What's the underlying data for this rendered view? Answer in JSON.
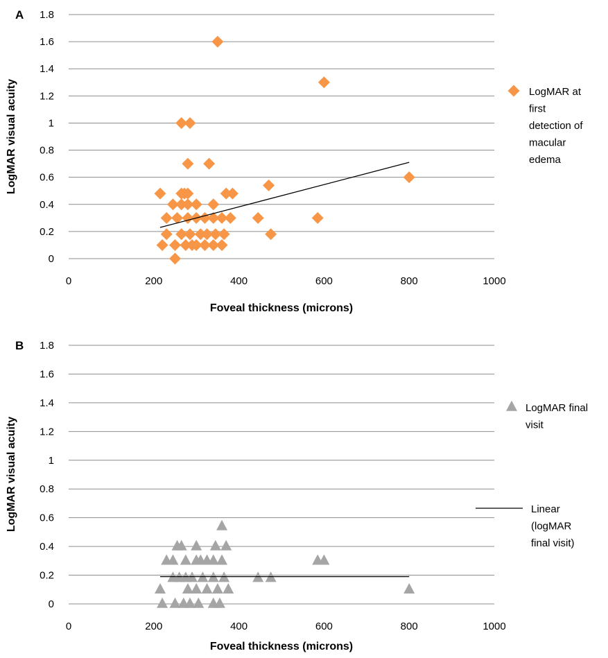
{
  "chart_data": [
    {
      "panel_label": "A",
      "type": "scatter",
      "xlabel": "Foveal thickness (microns)",
      "ylabel": "LogMAR visual acuity",
      "xlim": [
        0,
        1000
      ],
      "ylim": [
        0,
        1.8
      ],
      "x_ticks": [
        "0",
        "200",
        "400",
        "600",
        "800",
        "1000"
      ],
      "y_ticks": [
        "0",
        "0.2",
        "0.4",
        "0.6",
        "0.8",
        "1",
        "1.2",
        "1.4",
        "1.6",
        "1.8"
      ],
      "grid": "horizontal",
      "legend_position": "right",
      "marker": "diamond",
      "color": "#F79646",
      "trendline_color": "#000000",
      "series": [
        {
          "name": "LogMAR at first detection of macular edema",
          "legend_lines": [
            "LogMAR at",
            "first",
            "detection of",
            "macular",
            "edema"
          ],
          "points": [
            [
              350,
              1.6
            ],
            [
              600,
              1.3
            ],
            [
              265,
              1.0
            ],
            [
              285,
              1.0
            ],
            [
              280,
              0.7
            ],
            [
              330,
              0.7
            ],
            [
              800,
              0.6
            ],
            [
              470,
              0.54
            ],
            [
              215,
              0.48
            ],
            [
              265,
              0.48
            ],
            [
              272,
              0.48
            ],
            [
              280,
              0.48
            ],
            [
              370,
              0.48
            ],
            [
              385,
              0.48
            ],
            [
              245,
              0.4
            ],
            [
              265,
              0.4
            ],
            [
              280,
              0.4
            ],
            [
              300,
              0.4
            ],
            [
              340,
              0.4
            ],
            [
              230,
              0.3
            ],
            [
              255,
              0.3
            ],
            [
              280,
              0.3
            ],
            [
              300,
              0.3
            ],
            [
              320,
              0.3
            ],
            [
              340,
              0.3
            ],
            [
              360,
              0.3
            ],
            [
              380,
              0.3
            ],
            [
              445,
              0.3
            ],
            [
              585,
              0.3
            ],
            [
              230,
              0.18
            ],
            [
              265,
              0.18
            ],
            [
              285,
              0.18
            ],
            [
              310,
              0.18
            ],
            [
              325,
              0.18
            ],
            [
              345,
              0.18
            ],
            [
              365,
              0.18
            ],
            [
              475,
              0.18
            ],
            [
              220,
              0.1
            ],
            [
              250,
              0.1
            ],
            [
              275,
              0.1
            ],
            [
              290,
              0.1
            ],
            [
              300,
              0.1
            ],
            [
              320,
              0.1
            ],
            [
              340,
              0.1
            ],
            [
              360,
              0.1
            ],
            [
              250,
              0.0
            ]
          ]
        }
      ],
      "trendline": {
        "x": [
          215,
          800
        ],
        "y": [
          0.23,
          0.71
        ]
      }
    },
    {
      "panel_label": "B",
      "type": "scatter",
      "xlabel": "Foveal thickness (microns)",
      "ylabel": "LogMAR visual acuity",
      "xlim": [
        0,
        1000
      ],
      "ylim": [
        0,
        1.8
      ],
      "x_ticks": [
        "0",
        "200",
        "400",
        "600",
        "800",
        "1000"
      ],
      "y_ticks": [
        "0",
        "0.2",
        "0.4",
        "0.6",
        "0.8",
        "1",
        "1.2",
        "1.4",
        "1.6",
        "1.8"
      ],
      "grid": "horizontal",
      "legend_position": "right",
      "marker": "triangle",
      "color": "#A5A5A5",
      "trendline_color": "#000000",
      "series": [
        {
          "name": "LogMAR final visit",
          "legend_lines": [
            "LogMAR final",
            "visit"
          ],
          "points": [
            [
              360,
              0.54
            ],
            [
              255,
              0.4
            ],
            [
              265,
              0.4
            ],
            [
              300,
              0.4
            ],
            [
              345,
              0.4
            ],
            [
              370,
              0.4
            ],
            [
              230,
              0.3
            ],
            [
              245,
              0.3
            ],
            [
              275,
              0.3
            ],
            [
              300,
              0.3
            ],
            [
              310,
              0.3
            ],
            [
              325,
              0.3
            ],
            [
              340,
              0.3
            ],
            [
              360,
              0.3
            ],
            [
              585,
              0.3
            ],
            [
              600,
              0.3
            ],
            [
              245,
              0.18
            ],
            [
              260,
              0.18
            ],
            [
              275,
              0.18
            ],
            [
              290,
              0.18
            ],
            [
              315,
              0.18
            ],
            [
              340,
              0.18
            ],
            [
              365,
              0.18
            ],
            [
              445,
              0.18
            ],
            [
              475,
              0.18
            ],
            [
              215,
              0.1
            ],
            [
              280,
              0.1
            ],
            [
              300,
              0.1
            ],
            [
              325,
              0.1
            ],
            [
              350,
              0.1
            ],
            [
              375,
              0.1
            ],
            [
              800,
              0.1
            ],
            [
              220,
              0.0
            ],
            [
              250,
              0.0
            ],
            [
              270,
              0.0
            ],
            [
              285,
              0.0
            ],
            [
              305,
              0.0
            ],
            [
              340,
              0.0
            ],
            [
              355,
              0.0
            ]
          ]
        }
      ],
      "trendline": {
        "name": "Linear (logMAR final visit)",
        "legend_lines": [
          "Linear",
          "(logMAR",
          "final visit)"
        ],
        "x": [
          215,
          800
        ],
        "y": [
          0.19,
          0.19
        ]
      }
    }
  ]
}
